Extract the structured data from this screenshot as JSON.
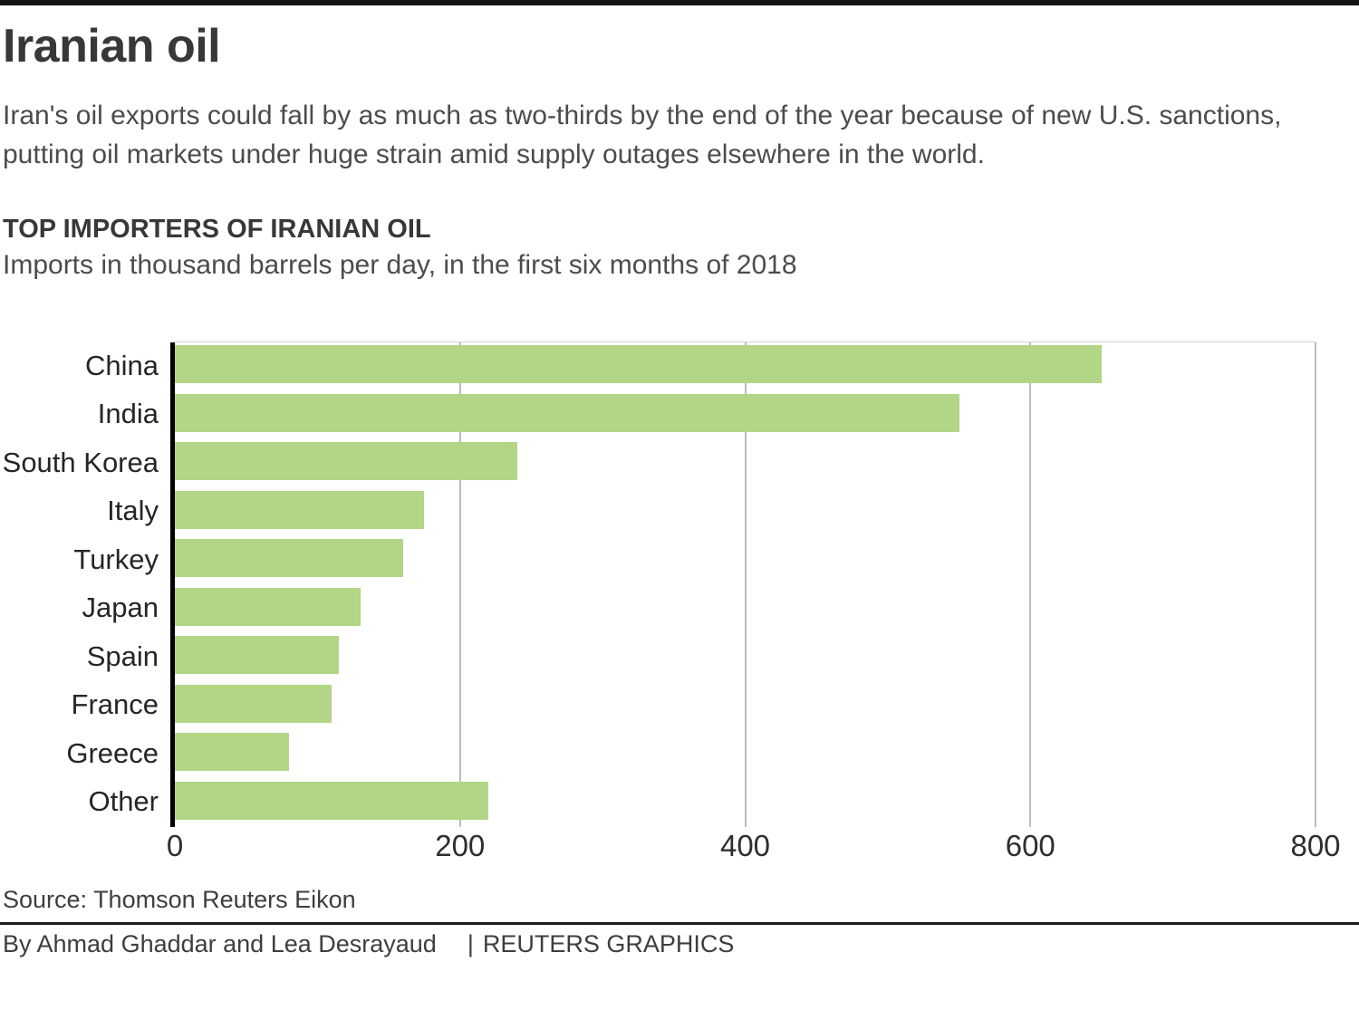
{
  "page": {
    "title": "Iranian oil",
    "description_line1": "Iran's oil exports could fall by as much as two-thirds by the end of the year because of new U.S. sanctions,",
    "description_line2": "putting oil markets under huge strain amid supply outages elsewhere in the world.",
    "section_heading": "TOP IMPORTERS OF IRANIAN OIL",
    "chart_subtitle": "Imports in thousand barrels per day, in the first six months of 2018"
  },
  "footer": {
    "source": "Source: Thomson Reuters Eikon",
    "byline": "By Ahmad Ghaddar and Lea Desrayaud",
    "separator": "|",
    "brand": "REUTERS GRAPHICS"
  },
  "colors": {
    "bar": "#b2d685",
    "gridline": "#bcbcbc",
    "axis": "#000000",
    "top_rule": "#131313",
    "divider": "#1f1f1f"
  },
  "chart_data": {
    "type": "bar",
    "orientation": "horizontal",
    "title": "TOP IMPORTERS OF IRANIAN OIL",
    "subtitle": "Imports in thousand barrels per day, in the first six months of 2018",
    "unit": "thousand barrels per day",
    "categories": [
      "China",
      "India",
      "South Korea",
      "Italy",
      "Turkey",
      "Japan",
      "Spain",
      "France",
      "Greece",
      "Other"
    ],
    "values": [
      650,
      550,
      240,
      175,
      160,
      130,
      115,
      110,
      80,
      220
    ],
    "xlim": [
      0,
      800
    ],
    "x_ticks": [
      0,
      200,
      400,
      600,
      800
    ],
    "grid": true,
    "legend": false,
    "bar_color": "#b2d685"
  }
}
